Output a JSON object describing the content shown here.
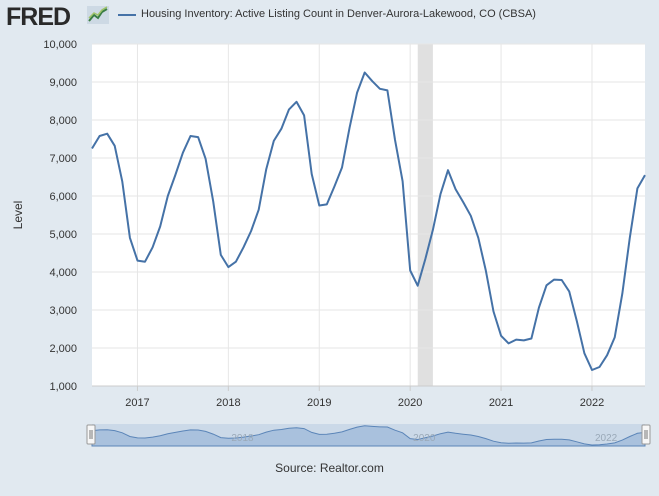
{
  "header": {
    "logo_text": "FRED",
    "legend_label": "Housing Inventory: Active Listing Count in Denver-Aurora-Lakewood, CO (CBSA)"
  },
  "footer": {
    "source": "Source: Realtor.com"
  },
  "colors": {
    "line": "#4572a7",
    "background": "#e1e9f0",
    "plot_background": "#ffffff",
    "recession": "#e0e0e0"
  },
  "chart_data": {
    "type": "line",
    "title": "",
    "xlabel": "",
    "ylabel": "Level",
    "x_tick_labels": [
      "2017",
      "2018",
      "2019",
      "2020",
      "2021",
      "2022"
    ],
    "y_tick_labels": [
      "1,000",
      "2,000",
      "3,000",
      "4,000",
      "5,000",
      "6,000",
      "7,000",
      "8,000",
      "9,000",
      "10,000"
    ],
    "ylim": [
      1000,
      10000
    ],
    "xlim": [
      "2016-07",
      "2022-08"
    ],
    "grid": true,
    "legend": "top",
    "recession_shading": [
      [
        "2020-02",
        "2020-04"
      ]
    ],
    "series": [
      {
        "name": "Housing Inventory: Active Listing Count in Denver-Aurora-Lakewood, CO (CBSA)",
        "x": [
          "2016-07",
          "2016-08",
          "2016-09",
          "2016-10",
          "2016-11",
          "2016-12",
          "2017-01",
          "2017-02",
          "2017-03",
          "2017-04",
          "2017-05",
          "2017-06",
          "2017-07",
          "2017-08",
          "2017-09",
          "2017-10",
          "2017-11",
          "2017-12",
          "2018-01",
          "2018-02",
          "2018-03",
          "2018-04",
          "2018-05",
          "2018-06",
          "2018-07",
          "2018-08",
          "2018-09",
          "2018-10",
          "2018-11",
          "2018-12",
          "2019-01",
          "2019-02",
          "2019-03",
          "2019-04",
          "2019-05",
          "2019-06",
          "2019-07",
          "2019-08",
          "2019-09",
          "2019-10",
          "2019-11",
          "2019-12",
          "2020-01",
          "2020-02",
          "2020-03",
          "2020-04",
          "2020-05",
          "2020-06",
          "2020-07",
          "2020-08",
          "2020-09",
          "2020-10",
          "2020-11",
          "2020-12",
          "2021-01",
          "2021-02",
          "2021-03",
          "2021-04",
          "2021-05",
          "2021-06",
          "2021-07",
          "2021-08",
          "2021-09",
          "2021-10",
          "2021-11",
          "2021-12",
          "2022-01",
          "2022-02",
          "2022-03",
          "2022-04",
          "2022-05",
          "2022-06",
          "2022-07",
          "2022-08"
        ],
        "values": [
          7250,
          7580,
          7640,
          7320,
          6380,
          4900,
          4300,
          4270,
          4650,
          5200,
          6000,
          6550,
          7140,
          7580,
          7550,
          6980,
          5860,
          4450,
          4130,
          4270,
          4650,
          5080,
          5640,
          6700,
          7450,
          7770,
          8280,
          8480,
          8120,
          6580,
          5750,
          5780,
          6250,
          6750,
          7800,
          8720,
          9250,
          9020,
          8820,
          8780,
          7480,
          6390,
          4040,
          3640,
          4340,
          5110,
          6050,
          6680,
          6180,
          5840,
          5480,
          4900,
          4030,
          2960,
          2320,
          2120,
          2220,
          2200,
          2250,
          3060,
          3650,
          3800,
          3790,
          3490,
          2710,
          1860,
          1420,
          1500,
          1810,
          2280,
          3430,
          4900,
          6200,
          6550
        ]
      }
    ],
    "navigator": {
      "tick_labels": [
        "2018",
        "2020",
        "2022"
      ]
    }
  }
}
